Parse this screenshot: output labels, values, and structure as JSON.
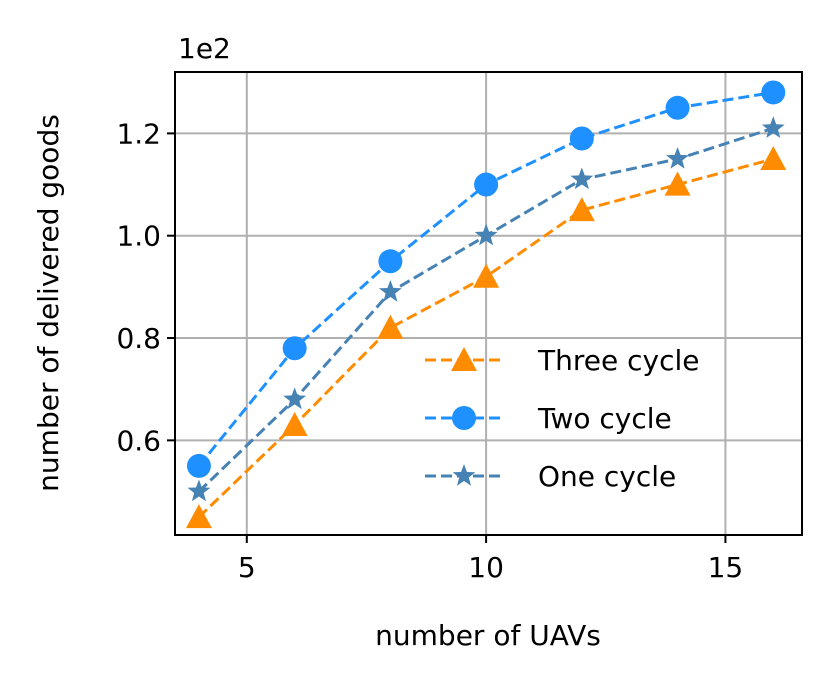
{
  "chart_data": {
    "type": "line",
    "title": "",
    "xlabel": "number of UAVs",
    "ylabel": "number of delivered goods",
    "y_offset_label": "1e2",
    "xlim": [
      3.5,
      16.6
    ],
    "ylim": [
      0.415,
      1.32
    ],
    "x_ticks": [
      5,
      10,
      15
    ],
    "x_tick_labels": [
      "5",
      "10",
      "15"
    ],
    "y_ticks": [
      0.6,
      0.8,
      1.0,
      1.2
    ],
    "y_tick_labels": [
      "0.6",
      "0.8",
      "1.0",
      "1.2"
    ],
    "grid": true,
    "legend_position": "lower-right",
    "x": [
      4,
      6,
      8,
      10,
      12,
      14,
      16
    ],
    "series": [
      {
        "name": "Three cycle",
        "values": [
          0.45,
          0.63,
          0.82,
          0.92,
          1.05,
          1.1,
          1.15
        ],
        "color": "#ff8c00",
        "marker": "triangle"
      },
      {
        "name": "Two cycle",
        "values": [
          0.55,
          0.78,
          0.95,
          1.1,
          1.19,
          1.25,
          1.28
        ],
        "color": "#1e90ff",
        "marker": "circle"
      },
      {
        "name": "One cycle",
        "values": [
          0.5,
          0.68,
          0.89,
          1.0,
          1.11,
          1.15,
          1.21
        ],
        "color": "#4682b4",
        "marker": "star"
      }
    ]
  }
}
